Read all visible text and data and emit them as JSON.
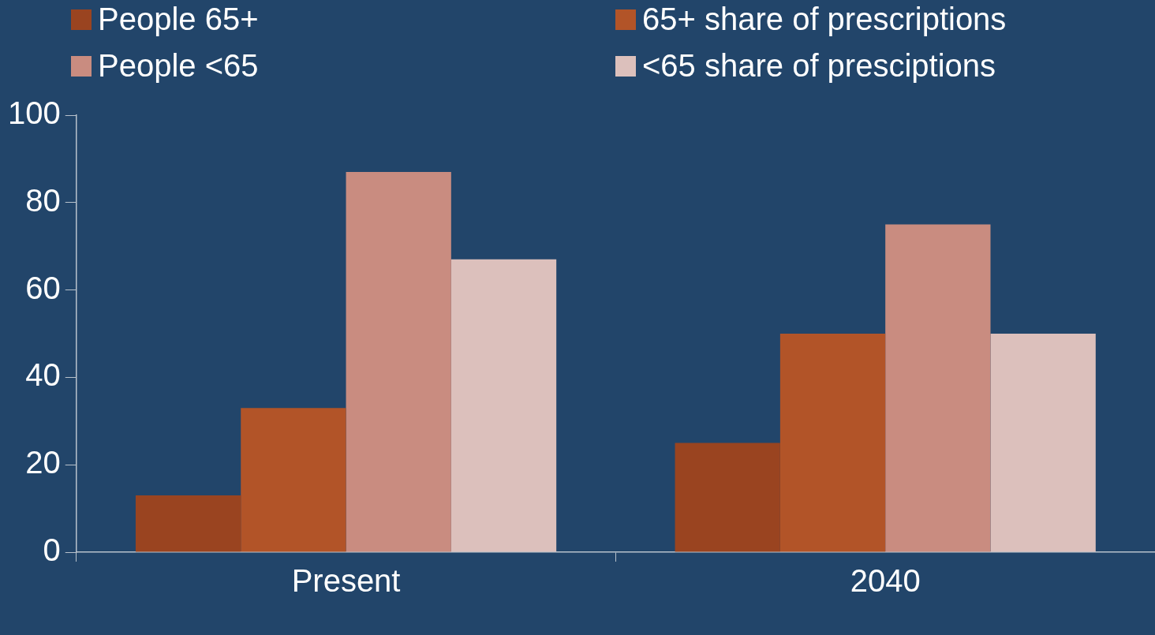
{
  "chart_data": {
    "type": "bar",
    "categories": [
      "Present",
      "2040"
    ],
    "series": [
      {
        "name": "People 65+",
        "color": "#9a4420",
        "values": [
          13,
          25
        ]
      },
      {
        "name": "65+ share of prescriptions",
        "color": "#b25428",
        "values": [
          33,
          50
        ]
      },
      {
        "name": "People <65",
        "color": "#c98c80",
        "values": [
          87,
          75
        ]
      },
      {
        "name": "<65 share of presciptions",
        "color": "#dcc0bc",
        "values": [
          67,
          50
        ]
      }
    ],
    "ylim": [
      0,
      100
    ],
    "yticks": [
      0,
      20,
      40,
      60,
      80,
      100
    ],
    "grid": false,
    "legend": "top"
  }
}
